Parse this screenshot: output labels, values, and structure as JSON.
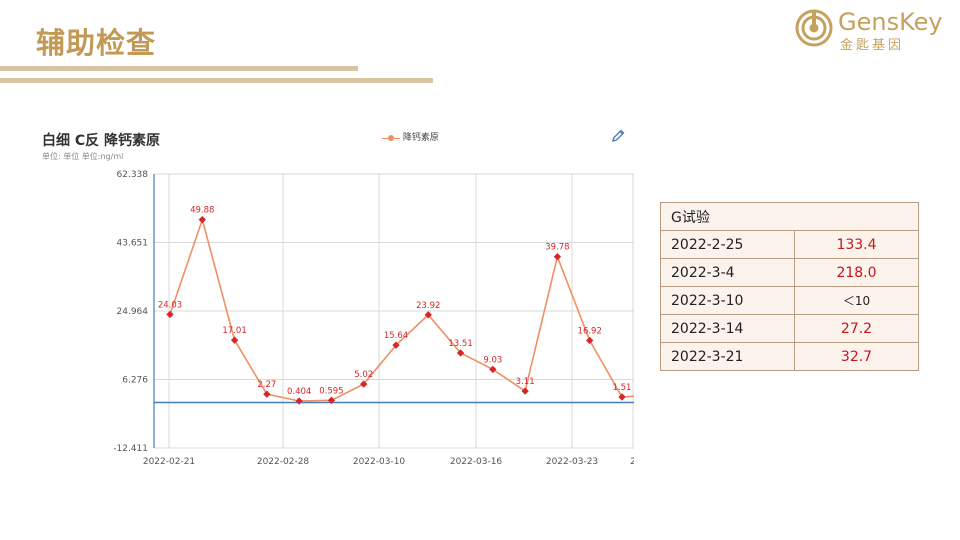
{
  "slide": {
    "title": "辅助检查"
  },
  "logo": {
    "text": "GensKey",
    "sub": "金匙基因"
  },
  "chart_data": {
    "type": "line",
    "title": "白细 C反 降钙素原",
    "unit": "单位: 单位 单位:ng/ml",
    "legend": [
      "降钙素原"
    ],
    "x_ticks": [
      "2022-02-21",
      "2022-02-28",
      "2022-03-10",
      "2022-03-16",
      "2022-03-23",
      "2"
    ],
    "y_ticks": [
      "62.338",
      "43.651",
      "24.964",
      "6.276",
      "-12.411"
    ],
    "ylim": [
      -12.411,
      62.338
    ],
    "series": [
      {
        "name": "降钙素原",
        "values": [
          24.03,
          49.88,
          17.01,
          2.27,
          0.404,
          0.595,
          5.02,
          15.64,
          23.92,
          13.51,
          9.03,
          3.11,
          39.78,
          16.92,
          1.51
        ],
        "labels": [
          "24.03",
          "49.88",
          "17.01",
          "2.27",
          "0.404",
          "0.595",
          "5.02",
          "15.64",
          "23.92",
          "13.51",
          "9.03",
          "3.11",
          "39.78",
          "16.92",
          "1.51"
        ]
      }
    ],
    "colors": {
      "line": "#ef8f66",
      "point": "#d7262a",
      "label": "#d7262a",
      "axis": "#3f7fbf",
      "grid": "#d9d9d9"
    }
  },
  "table": {
    "header": "G试验",
    "rows": [
      {
        "date": "2022-2-25",
        "value": "133.4"
      },
      {
        "date": "2022-3-4",
        "value": "218.0"
      },
      {
        "date": "2022-3-10",
        "value": "＜10"
      },
      {
        "date": "2022-3-14",
        "value": "27.2"
      },
      {
        "date": "2022-3-21",
        "value": "32.7"
      }
    ]
  }
}
